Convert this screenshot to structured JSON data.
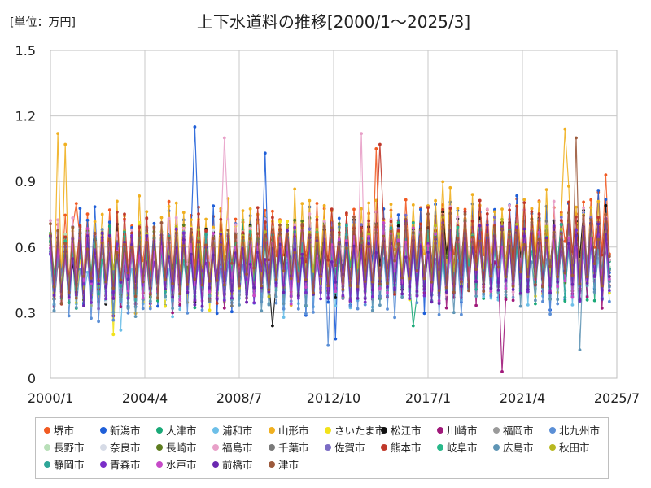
{
  "unit_label": "[単位：万円]",
  "chart_data": {
    "type": "line",
    "title": "上下水道料の推移[2000/1～2025/3]",
    "xlabel": "",
    "ylabel": "",
    "ylim": [
      0,
      1.5
    ],
    "yticks": [
      "0",
      "0.3",
      "0.6",
      "0.9",
      "1.2",
      "1.5"
    ],
    "xlim": [
      "2000/1",
      "2025/7"
    ],
    "xticks": [
      "2000/1",
      "2004/4",
      "2008/7",
      "2012/10",
      "2017/1",
      "2021/4",
      "2025/7"
    ],
    "grid": true,
    "legend_position": "bottom",
    "frequency": "bimonthly",
    "series": [
      {
        "name": "堺市",
        "color": "#f15a22",
        "trend_start": 0.58,
        "trend_end": 0.66,
        "spread": 0.18,
        "peaks": [
          {
            "date": "2001/3",
            "value": 0.8
          },
          {
            "date": "2014/9",
            "value": 1.05
          },
          {
            "date": "2025/1",
            "value": 0.93
          }
        ]
      },
      {
        "name": "新潟市",
        "color": "#1f5fd8",
        "trend_start": 0.52,
        "trend_end": 0.6,
        "spread": 0.22,
        "peaks": [
          {
            "date": "2006/7",
            "value": 1.15
          },
          {
            "date": "2009/9",
            "value": 1.03
          },
          {
            "date": "2012/11",
            "value": 0.18
          }
        ]
      },
      {
        "name": "大津市",
        "color": "#1aa978",
        "trend_start": 0.5,
        "trend_end": 0.55,
        "spread": 0.17,
        "peaks": [
          {
            "date": "2016/5",
            "value": 0.24
          }
        ]
      },
      {
        "name": "浦和市",
        "color": "#6dbfe8",
        "trend_start": 0.46,
        "trend_end": 0.52,
        "spread": 0.16,
        "peaks": [
          {
            "date": "2003/3",
            "value": 0.22
          }
        ]
      },
      {
        "name": "山形市",
        "color": "#f0b020",
        "trend_start": 0.56,
        "trend_end": 0.64,
        "spread": 0.22,
        "peaks": [
          {
            "date": "2000/5",
            "value": 1.12
          },
          {
            "date": "2000/9",
            "value": 1.07
          },
          {
            "date": "2023/3",
            "value": 1.14
          }
        ]
      },
      {
        "name": "さいたま市",
        "color": "#f2e21a",
        "trend_start": 0.5,
        "trend_end": 0.58,
        "spread": 0.17,
        "peaks": [
          {
            "date": "2002/11",
            "value": 0.2
          }
        ]
      },
      {
        "name": "松江市",
        "color": "#111111",
        "trend_start": 0.5,
        "trend_end": 0.62,
        "spread": 0.15,
        "peaks": [
          {
            "date": "2010/1",
            "value": 0.24
          }
        ]
      },
      {
        "name": "川崎市",
        "color": "#a0197a",
        "trend_start": 0.48,
        "trend_end": 0.52,
        "spread": 0.16,
        "peaks": [
          {
            "date": "2020/5",
            "value": 0.03
          }
        ]
      },
      {
        "name": "福岡市",
        "color": "#9a9a9a",
        "trend_start": 0.5,
        "trend_end": 0.56,
        "spread": 0.14,
        "peaks": []
      },
      {
        "name": "北九州市",
        "color": "#5b8fd6",
        "trend_start": 0.46,
        "trend_end": 0.52,
        "spread": 0.18,
        "peaks": [
          {
            "date": "2012/7",
            "value": 0.15
          }
        ]
      },
      {
        "name": "長野市",
        "color": "#b8dfb8",
        "trend_start": 0.52,
        "trend_end": 0.58,
        "spread": 0.14,
        "peaks": []
      },
      {
        "name": "奈良市",
        "color": "#d6dbe6",
        "trend_start": 0.5,
        "trend_end": 0.56,
        "spread": 0.14,
        "peaks": []
      },
      {
        "name": "長崎市",
        "color": "#5e7d20",
        "trend_start": 0.52,
        "trend_end": 0.6,
        "spread": 0.15,
        "peaks": []
      },
      {
        "name": "福島市",
        "color": "#e8a0c8",
        "trend_start": 0.55,
        "trend_end": 0.6,
        "spread": 0.18,
        "peaks": [
          {
            "date": "2007/11",
            "value": 1.1
          },
          {
            "date": "2014/1",
            "value": 1.12
          }
        ]
      },
      {
        "name": "千葉市",
        "color": "#7a7a7a",
        "trend_start": 0.5,
        "trend_end": 0.56,
        "spread": 0.15,
        "peaks": []
      },
      {
        "name": "佐賀市",
        "color": "#7b6cc4",
        "trend_start": 0.5,
        "trend_end": 0.58,
        "spread": 0.16,
        "peaks": []
      },
      {
        "name": "熊本市",
        "color": "#c0392b",
        "trend_start": 0.55,
        "trend_end": 0.62,
        "spread": 0.18,
        "peaks": [
          {
            "date": "2014/11",
            "value": 1.07
          }
        ]
      },
      {
        "name": "岐阜市",
        "color": "#28b88a",
        "trend_start": 0.5,
        "trend_end": 0.56,
        "spread": 0.14,
        "peaks": []
      },
      {
        "name": "広島市",
        "color": "#5f95b5",
        "trend_start": 0.48,
        "trend_end": 0.52,
        "spread": 0.17,
        "peaks": [
          {
            "date": "2023/11",
            "value": 0.13
          }
        ]
      },
      {
        "name": "秋田市",
        "color": "#b8b820",
        "trend_start": 0.52,
        "trend_end": 0.58,
        "spread": 0.14,
        "peaks": []
      },
      {
        "name": "静岡市",
        "color": "#2ea698",
        "trend_start": 0.5,
        "trend_end": 0.55,
        "spread": 0.14,
        "peaks": []
      },
      {
        "name": "青森市",
        "color": "#7a2ec8",
        "trend_start": 0.5,
        "trend_end": 0.55,
        "spread": 0.16,
        "peaks": []
      },
      {
        "name": "水戸市",
        "color": "#c64ac8",
        "trend_start": 0.5,
        "trend_end": 0.55,
        "spread": 0.15,
        "peaks": []
      },
      {
        "name": "前橋市",
        "color": "#6a28b0",
        "trend_start": 0.48,
        "trend_end": 0.54,
        "spread": 0.15,
        "peaks": []
      },
      {
        "name": "津市",
        "color": "#9c5a3c",
        "trend_start": 0.52,
        "trend_end": 0.58,
        "spread": 0.15,
        "peaks": [
          {
            "date": "2023/9",
            "value": 1.1
          }
        ]
      }
    ]
  }
}
